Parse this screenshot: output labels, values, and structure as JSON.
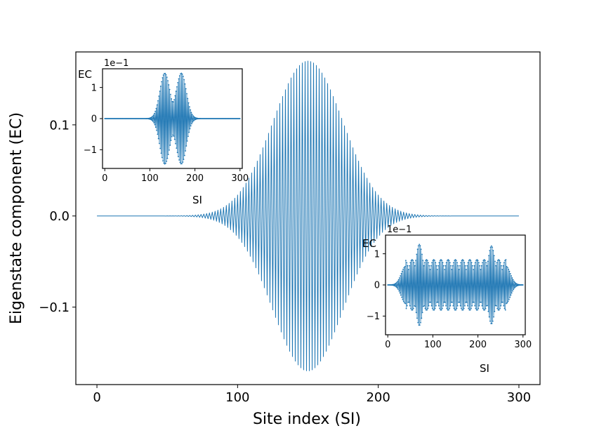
{
  "chart_data": [
    {
      "type": "line",
      "title": "",
      "xlabel": "Site index (SI)",
      "ylabel": "Eigenstate component (EC)",
      "xlim": [
        -15,
        315
      ],
      "ylim": [
        -0.185,
        0.18
      ],
      "xticks": [
        0,
        100,
        200,
        300
      ],
      "xtick_labels": [
        "0",
        "100",
        "200",
        "300"
      ],
      "yticks": [
        -0.1,
        0.0,
        0.1
      ],
      "ytick_labels": [
        "−0.1",
        "0.0",
        "0.1"
      ],
      "grid": false,
      "legend": "none",
      "color": "#1f77b4",
      "series": [
        {
          "description_of_shape": "",
          "sites": 301,
          "envelope": "gaussian",
          "center": 150,
          "width": 25,
          "amplitude": 0.17,
          "oscillation": "alternating sign per site"
        }
      ]
    },
    {
      "type": "line",
      "xlabel": "SI",
      "ylabel": "EC",
      "offset_text": "1e−1",
      "xlim": [
        -5,
        305
      ],
      "ylim": [
        -1.6,
        1.6
      ],
      "xticks": [
        0,
        100,
        200,
        300
      ],
      "xtick_labels": [
        "0",
        "100",
        "200",
        "300"
      ],
      "yticks": [
        -1,
        0,
        1
      ],
      "ytick_labels": [
        "−1",
        "0",
        "1"
      ],
      "grid": false,
      "color": "#1f77b4",
      "series": [
        {
          "sites": 301,
          "envelope": "double-peak",
          "peaks": [
            133,
            170
          ],
          "amplitude": 1.45,
          "oscillation": "alternating sign per site"
        }
      ]
    },
    {
      "type": "line",
      "xlabel": "SI",
      "ylabel": "EC",
      "offset_text": "1e−1",
      "xlim": [
        -5,
        305
      ],
      "ylim": [
        -1.6,
        1.6
      ],
      "xticks": [
        0,
        100,
        200,
        300
      ],
      "xtick_labels": [
        "0",
        "100",
        "200",
        "300"
      ],
      "yticks": [
        -1,
        0,
        1
      ],
      "ytick_labels": [
        "−1",
        "0",
        "1"
      ],
      "grid": false,
      "color": "#1f77b4",
      "series": [
        {
          "sites": 301,
          "envelope": "multi-lobe",
          "edge_peaks": [
            70,
            230
          ],
          "amplitude": 1.3,
          "oscillation": "alternating sign per site"
        }
      ]
    }
  ]
}
